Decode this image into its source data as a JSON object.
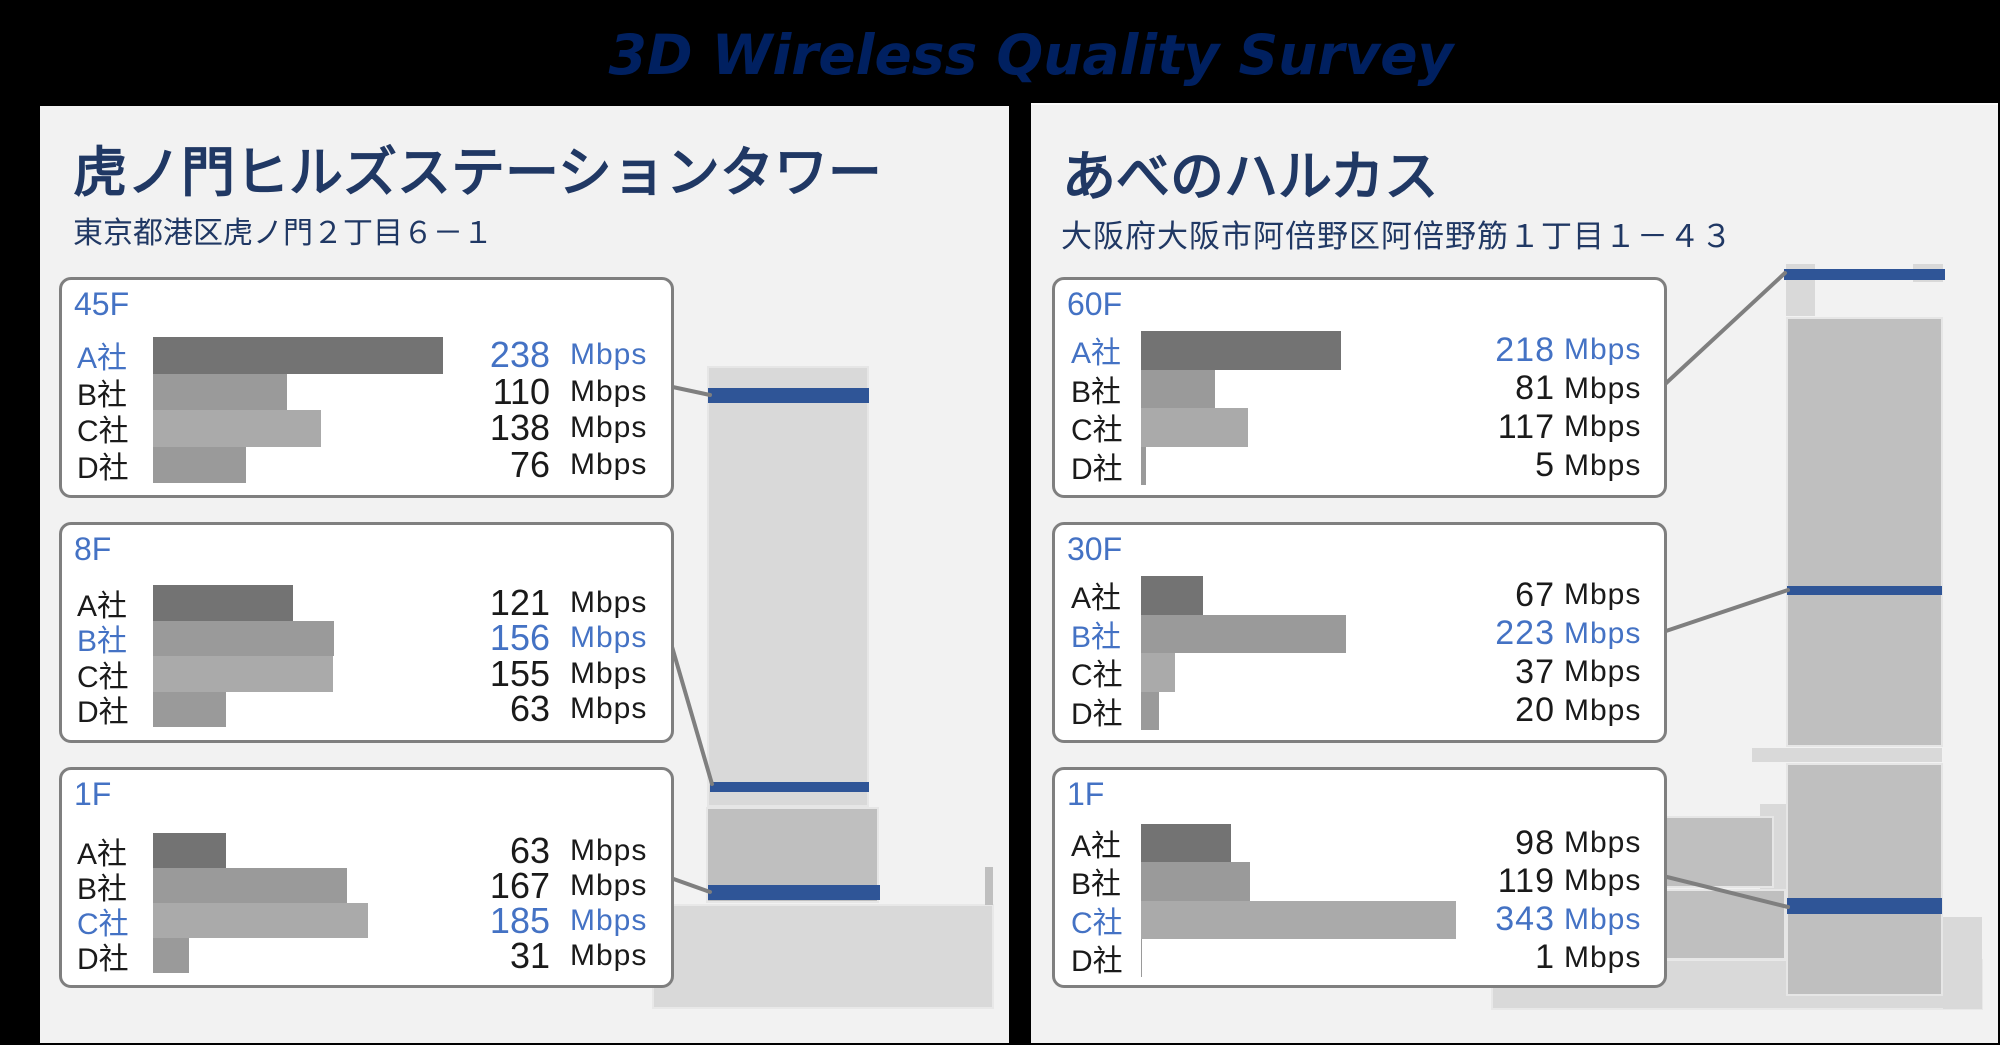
{
  "title": "3D Wireless Quality Survey",
  "unit": "Mbps",
  "colors": {
    "background": "#000000",
    "panel": "#f2f2f2",
    "title": "#002060",
    "heading": "#203864",
    "highlight_text": "#4472c4",
    "floor_band": "#2f5597",
    "bar_a": "#737373",
    "bar_b": "#9a9a9a",
    "bar_c": "#aaaaaa",
    "bar_d": "#9a9a9a",
    "building_light": "#d9d9d9",
    "building_dark": "#bfbfbf",
    "card_border": "#7f7f7f"
  },
  "buildings": [
    {
      "name": "虎ノ門ヒルズステーションタワー",
      "address": "東京都港区虎ノ門２丁目６－１",
      "floors": [
        {
          "floor": "45F",
          "rows": [
            {
              "company": "A社",
              "value": 238,
              "highlight": true
            },
            {
              "company": "B社",
              "value": 110,
              "highlight": false
            },
            {
              "company": "C社",
              "value": 138,
              "highlight": false
            },
            {
              "company": "D社",
              "value": 76,
              "highlight": false
            }
          ]
        },
        {
          "floor": "8F",
          "rows": [
            {
              "company": "A社",
              "value": 121,
              "highlight": false
            },
            {
              "company": "B社",
              "value": 156,
              "highlight": true
            },
            {
              "company": "C社",
              "value": 155,
              "highlight": false
            },
            {
              "company": "D社",
              "value": 63,
              "highlight": false
            }
          ]
        },
        {
          "floor": "1F",
          "rows": [
            {
              "company": "A社",
              "value": 63,
              "highlight": false
            },
            {
              "company": "B社",
              "value": 167,
              "highlight": false
            },
            {
              "company": "C社",
              "value": 185,
              "highlight": true
            },
            {
              "company": "D社",
              "value": 31,
              "highlight": false
            }
          ]
        }
      ]
    },
    {
      "name": "あべのハルカス",
      "address": "大阪府大阪市阿倍野区阿倍野筋１丁目１－４３",
      "floors": [
        {
          "floor": "60F",
          "rows": [
            {
              "company": "A社",
              "value": 218,
              "highlight": true
            },
            {
              "company": "B社",
              "value": 81,
              "highlight": false
            },
            {
              "company": "C社",
              "value": 117,
              "highlight": false
            },
            {
              "company": "D社",
              "value": 5,
              "highlight": false
            }
          ]
        },
        {
          "floor": "30F",
          "rows": [
            {
              "company": "A社",
              "value": 67,
              "highlight": false
            },
            {
              "company": "B社",
              "value": 223,
              "highlight": true
            },
            {
              "company": "C社",
              "value": 37,
              "highlight": false
            },
            {
              "company": "D社",
              "value": 20,
              "highlight": false
            }
          ]
        },
        {
          "floor": "1F",
          "rows": [
            {
              "company": "A社",
              "value": 98,
              "highlight": false
            },
            {
              "company": "B社",
              "value": 119,
              "highlight": false
            },
            {
              "company": "C社",
              "value": 343,
              "highlight": true
            },
            {
              "company": "D社",
              "value": 1,
              "highlight": false
            }
          ]
        }
      ]
    }
  ],
  "chart_data": [
    {
      "type": "bar",
      "orientation": "horizontal",
      "title": "虎ノ門ヒルズステーションタワー 45F",
      "categories": [
        "A社",
        "B社",
        "C社",
        "D社"
      ],
      "values": [
        238,
        110,
        138,
        76
      ],
      "xlabel": "Mbps",
      "ylabel": "",
      "highlight": "A社"
    },
    {
      "type": "bar",
      "orientation": "horizontal",
      "title": "虎ノ門ヒルズステーションタワー 8F",
      "categories": [
        "A社",
        "B社",
        "C社",
        "D社"
      ],
      "values": [
        121,
        156,
        155,
        63
      ],
      "xlabel": "Mbps",
      "ylabel": "",
      "highlight": "B社"
    },
    {
      "type": "bar",
      "orientation": "horizontal",
      "title": "虎ノ門ヒルズステーションタワー 1F",
      "categories": [
        "A社",
        "B社",
        "C社",
        "D社"
      ],
      "values": [
        63,
        167,
        185,
        31
      ],
      "xlabel": "Mbps",
      "ylabel": "",
      "highlight": "C社"
    },
    {
      "type": "bar",
      "orientation": "horizontal",
      "title": "あべのハルカス 60F",
      "categories": [
        "A社",
        "B社",
        "C社",
        "D社"
      ],
      "values": [
        218,
        81,
        117,
        5
      ],
      "xlabel": "Mbps",
      "ylabel": "",
      "highlight": "A社"
    },
    {
      "type": "bar",
      "orientation": "horizontal",
      "title": "あべのハルカス 30F",
      "categories": [
        "A社",
        "B社",
        "C社",
        "D社"
      ],
      "values": [
        67,
        223,
        37,
        20
      ],
      "xlabel": "Mbps",
      "ylabel": "",
      "highlight": "B社"
    },
    {
      "type": "bar",
      "orientation": "horizontal",
      "title": "あべのハルカス 1F",
      "categories": [
        "A社",
        "B社",
        "C社",
        "D社"
      ],
      "values": [
        98,
        119,
        343,
        1
      ],
      "xlabel": "Mbps",
      "ylabel": "",
      "highlight": "C社"
    }
  ]
}
